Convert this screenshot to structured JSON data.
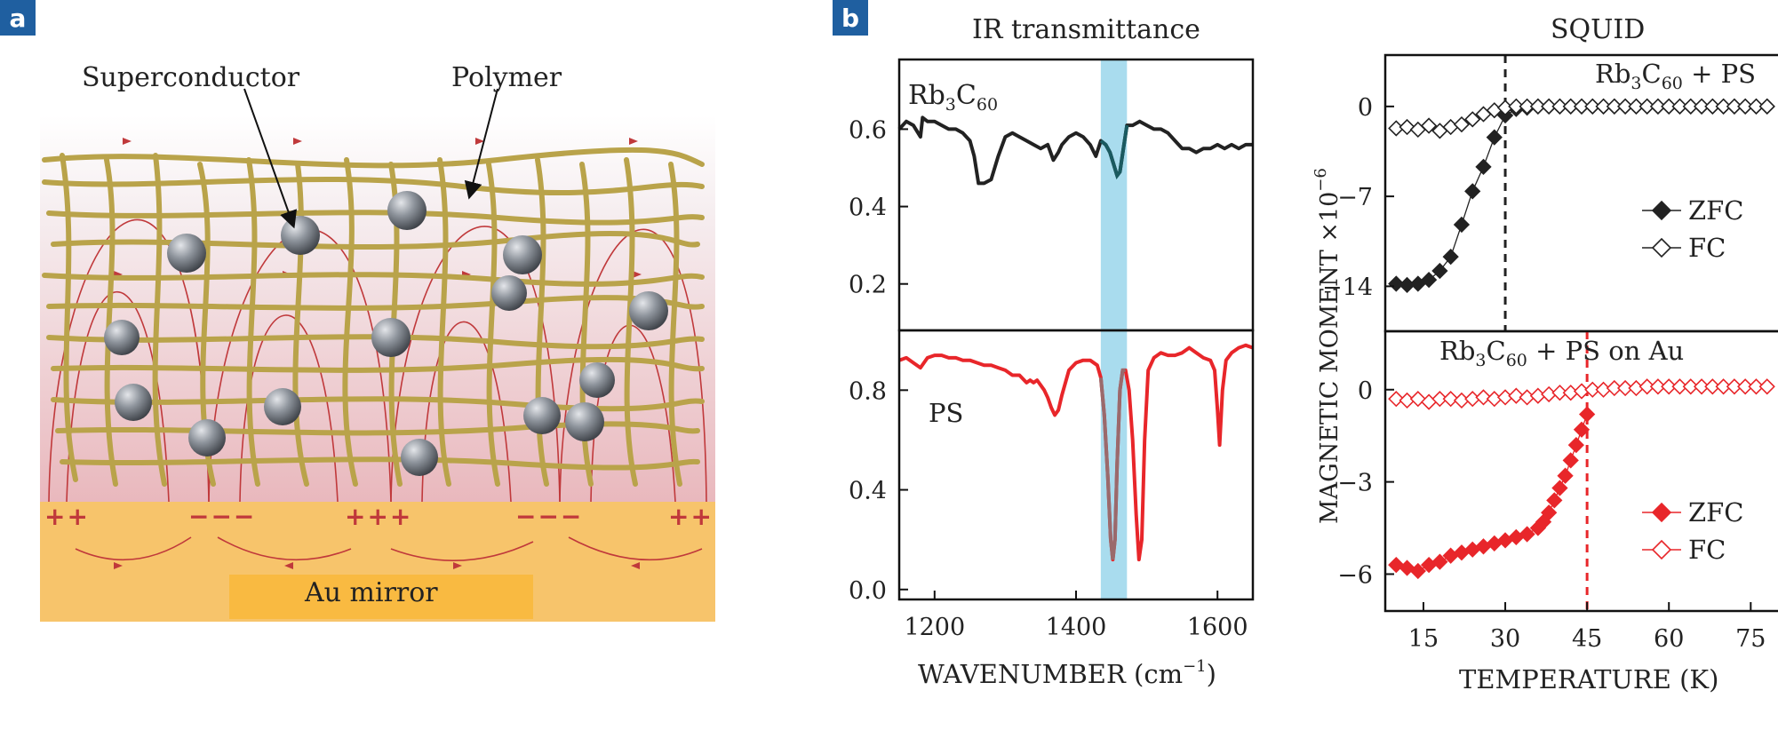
{
  "panel_a": {
    "badge": "a",
    "label_superconductor": "Superconductor",
    "label_polymer": "Polymer",
    "mirror_label": "Au mirror",
    "charges": [
      "++",
      "−−−",
      "+++",
      "−−−",
      "++"
    ]
  },
  "panel_b": {
    "badge": "b",
    "ir_title": "IR transmittance",
    "squid_title": "SQUID"
  },
  "colors": {
    "black_series": "#222222",
    "red_series": "#e8262a",
    "highlight_band": "#a9dcee",
    "band_line": "#1a5a60",
    "fieldline": "#c0393b",
    "polymer": "#b9a34a",
    "mirror": "#f7c46b"
  },
  "chart_data": [
    {
      "id": "ir-top",
      "type": "line",
      "title": "IR transmittance",
      "label_main": "Rb",
      "label_sub1": "3",
      "label_c": "C",
      "label_sub2": "60",
      "xlim": [
        1150,
        1650
      ],
      "ylim": [
        0.08,
        0.78
      ],
      "yticks": [
        0.2,
        0.4,
        0.6
      ],
      "ytick_labels": [
        "0.2",
        "0.4",
        "0.6"
      ],
      "x": [
        1150,
        1160,
        1170,
        1180,
        1183,
        1190,
        1200,
        1210,
        1220,
        1230,
        1240,
        1250,
        1256,
        1262,
        1270,
        1280,
        1290,
        1300,
        1310,
        1320,
        1330,
        1340,
        1350,
        1360,
        1368,
        1375,
        1380,
        1390,
        1400,
        1410,
        1420,
        1428,
        1435,
        1442,
        1448,
        1453,
        1458,
        1462,
        1467,
        1472,
        1480,
        1490,
        1500,
        1510,
        1520,
        1530,
        1540,
        1550,
        1560,
        1570,
        1580,
        1590,
        1600,
        1610,
        1620,
        1630,
        1640,
        1650
      ],
      "y": [
        0.6,
        0.62,
        0.61,
        0.58,
        0.63,
        0.62,
        0.62,
        0.61,
        0.6,
        0.6,
        0.59,
        0.57,
        0.53,
        0.46,
        0.46,
        0.47,
        0.53,
        0.58,
        0.59,
        0.58,
        0.57,
        0.56,
        0.55,
        0.56,
        0.52,
        0.54,
        0.56,
        0.58,
        0.59,
        0.58,
        0.56,
        0.53,
        0.57,
        0.56,
        0.54,
        0.51,
        0.48,
        0.49,
        0.55,
        0.61,
        0.61,
        0.62,
        0.61,
        0.6,
        0.6,
        0.59,
        0.57,
        0.55,
        0.55,
        0.54,
        0.55,
        0.55,
        0.56,
        0.55,
        0.56,
        0.55,
        0.56,
        0.56
      ]
    },
    {
      "id": "ir-bottom",
      "type": "line",
      "label": "PS",
      "xlabel_main": "WAVENUMBER (cm",
      "xlabel_sup": "−1",
      "xlabel_end": ")",
      "xlim": [
        1150,
        1650
      ],
      "ylim": [
        -0.04,
        1.04
      ],
      "xticks": [
        1200,
        1400,
        1600
      ],
      "xtick_labels": [
        "1200",
        "1400",
        "1600"
      ],
      "yticks": [
        0.0,
        0.4,
        0.8
      ],
      "ytick_labels": [
        "0.0",
        "0.4",
        "0.8"
      ],
      "x": [
        1150,
        1160,
        1170,
        1180,
        1190,
        1200,
        1210,
        1220,
        1230,
        1240,
        1250,
        1260,
        1270,
        1280,
        1290,
        1300,
        1310,
        1320,
        1330,
        1335,
        1340,
        1345,
        1350,
        1355,
        1360,
        1365,
        1370,
        1375,
        1380,
        1390,
        1400,
        1410,
        1420,
        1430,
        1435,
        1440,
        1445,
        1449,
        1452,
        1455,
        1458,
        1462,
        1466,
        1470,
        1475,
        1480,
        1485,
        1489,
        1493,
        1497,
        1502,
        1510,
        1520,
        1530,
        1540,
        1550,
        1560,
        1570,
        1580,
        1590,
        1596,
        1600,
        1603,
        1607,
        1612,
        1620,
        1630,
        1640,
        1650
      ],
      "y": [
        0.92,
        0.93,
        0.91,
        0.89,
        0.93,
        0.94,
        0.94,
        0.93,
        0.93,
        0.92,
        0.92,
        0.91,
        0.9,
        0.9,
        0.89,
        0.88,
        0.86,
        0.86,
        0.83,
        0.84,
        0.83,
        0.84,
        0.82,
        0.8,
        0.77,
        0.73,
        0.7,
        0.72,
        0.78,
        0.88,
        0.91,
        0.92,
        0.92,
        0.9,
        0.85,
        0.7,
        0.45,
        0.2,
        0.12,
        0.2,
        0.5,
        0.8,
        0.88,
        0.88,
        0.8,
        0.6,
        0.3,
        0.12,
        0.2,
        0.6,
        0.88,
        0.93,
        0.95,
        0.94,
        0.94,
        0.95,
        0.97,
        0.95,
        0.93,
        0.92,
        0.88,
        0.72,
        0.58,
        0.8,
        0.92,
        0.95,
        0.97,
        0.98,
        0.97
      ]
    },
    {
      "id": "squid-top",
      "type": "scatter",
      "title": "SQUID",
      "label_main": "Rb",
      "label_sub1": "3",
      "label_c": "C",
      "label_sub2": "60",
      "label_end": " + PS",
      "ylabel_main": "MAGNETIC MOMENT ×10",
      "ylabel_sup": "−6",
      "xlim": [
        8,
        80
      ],
      "ylim": [
        -17.5,
        4
      ],
      "yticks": [
        -14,
        -7,
        0
      ],
      "ytick_labels": [
        "−14",
        "−7",
        "0"
      ],
      "vline": 30,
      "legend": [
        {
          "name": "ZFC",
          "filled": true
        },
        {
          "name": "FC",
          "filled": false
        }
      ],
      "series": [
        {
          "name": "ZFC",
          "filled": true,
          "x": [
            10,
            12,
            14,
            16,
            18,
            20,
            22,
            24,
            26,
            28,
            30,
            32,
            34,
            36,
            38,
            40,
            42,
            44,
            46,
            48,
            50,
            52,
            54,
            56,
            58,
            60,
            62,
            64,
            66,
            68,
            70,
            72,
            74,
            76,
            78
          ],
          "y": [
            -13.8,
            -13.9,
            -13.8,
            -13.5,
            -12.8,
            -11.7,
            -9.2,
            -6.6,
            -4.7,
            -2.4,
            -0.7,
            -0.2,
            -0.1,
            0,
            0,
            0,
            0,
            0,
            0,
            0,
            0,
            0,
            0,
            0,
            0,
            0,
            0,
            0,
            0,
            0,
            0,
            0,
            0,
            0,
            0
          ]
        },
        {
          "name": "FC",
          "filled": false,
          "x": [
            10,
            12,
            14,
            16,
            18,
            20,
            22,
            24,
            26,
            28,
            30,
            32,
            34,
            36,
            38,
            40,
            42,
            44,
            46,
            48,
            50,
            52,
            54,
            56,
            58,
            60,
            62,
            64,
            66,
            68,
            70,
            72,
            74,
            76,
            78
          ],
          "y": [
            -1.7,
            -1.6,
            -1.8,
            -1.5,
            -1.9,
            -1.6,
            -1.4,
            -1.0,
            -0.6,
            -0.3,
            -0.1,
            0,
            0,
            0,
            0,
            0,
            0,
            0,
            0,
            0,
            0,
            0,
            0,
            0,
            0,
            0,
            0,
            0,
            0,
            0,
            0,
            0,
            0,
            0,
            0
          ]
        }
      ]
    },
    {
      "id": "squid-bottom",
      "type": "scatter",
      "label_main": "Rb",
      "label_sub1": "3",
      "label_c": "C",
      "label_sub2": "60",
      "label_end": " + PS on Au",
      "xlabel": "TEMPERATURE (K)",
      "xlim": [
        8,
        80
      ],
      "ylim": [
        -7.2,
        1.9
      ],
      "xticks": [
        15,
        30,
        45,
        60,
        75
      ],
      "xtick_labels": [
        "15",
        "30",
        "45",
        "60",
        "75"
      ],
      "yticks": [
        -6,
        -3,
        0
      ],
      "ytick_labels": [
        "−6",
        "−3",
        "0"
      ],
      "vline": 45,
      "legend": [
        {
          "name": "ZFC",
          "filled": true
        },
        {
          "name": "FC",
          "filled": false
        }
      ],
      "series": [
        {
          "name": "ZFC",
          "filled": true,
          "x": [
            10,
            12,
            14,
            16,
            18,
            20,
            22,
            24,
            26,
            28,
            30,
            32,
            34,
            36,
            37,
            38,
            39,
            40,
            41,
            42,
            43,
            44,
            45
          ],
          "y": [
            -5.7,
            -5.8,
            -5.9,
            -5.7,
            -5.6,
            -5.4,
            -5.3,
            -5.2,
            -5.1,
            -5.0,
            -4.9,
            -4.8,
            -4.7,
            -4.5,
            -4.3,
            -4.0,
            -3.6,
            -3.2,
            -2.8,
            -2.3,
            -1.8,
            -1.3,
            -0.8
          ]
        },
        {
          "name": "FC",
          "filled": false,
          "x": [
            10,
            12,
            14,
            16,
            18,
            20,
            22,
            24,
            26,
            28,
            30,
            32,
            34,
            36,
            38,
            40,
            42,
            44,
            46,
            48,
            50,
            52,
            54,
            56,
            58,
            60,
            62,
            64,
            66,
            68,
            70,
            72,
            74,
            76,
            78
          ],
          "y": [
            -0.3,
            -0.35,
            -0.3,
            -0.4,
            -0.3,
            -0.3,
            -0.35,
            -0.3,
            -0.25,
            -0.3,
            -0.25,
            -0.2,
            -0.25,
            -0.2,
            -0.15,
            -0.1,
            -0.1,
            -0.05,
            0,
            0,
            0.05,
            0.05,
            0.05,
            0.1,
            0.1,
            0.1,
            0.1,
            0.1,
            0.1,
            0.1,
            0.1,
            0.1,
            0.1,
            0.1,
            0.1
          ]
        }
      ]
    }
  ]
}
